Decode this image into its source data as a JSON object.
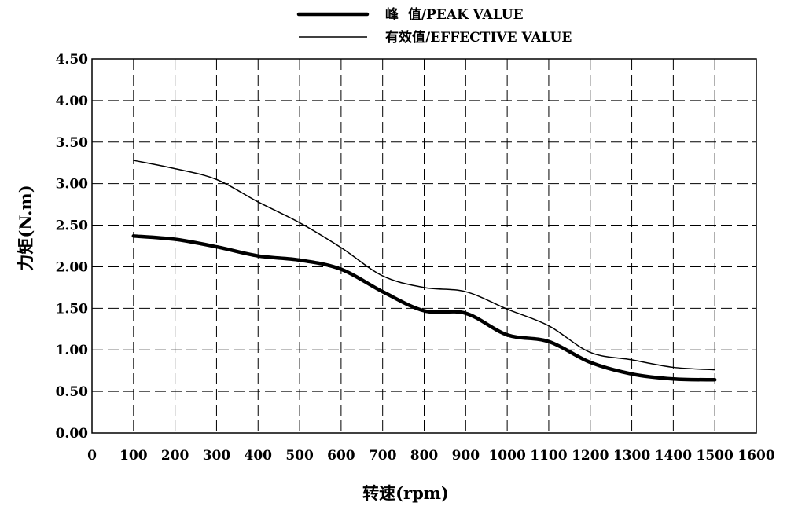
{
  "chart_data": {
    "type": "line",
    "xlabel": "转速(rpm)",
    "ylabel": "力矩(N.m)",
    "xlim": [
      0,
      1600
    ],
    "ylim": [
      0,
      4.5
    ],
    "x_ticks": [
      "0",
      "100",
      "200",
      "300",
      "400",
      "500",
      "600",
      "700",
      "800",
      "900",
      "1000",
      "1100",
      "1200",
      "1300",
      "1400",
      "1500",
      "1600"
    ],
    "y_ticks": [
      "0.00",
      "0.50",
      "1.00",
      "1.50",
      "2.00",
      "2.50",
      "3.00",
      "3.50",
      "4.00",
      "4.50"
    ],
    "grid": true,
    "legend_position": "top-center",
    "series": [
      {
        "name": "峰  值/PEAK VALUE",
        "style": "thick",
        "color": "#000000",
        "x": [
          100,
          200,
          300,
          400,
          500,
          600,
          700,
          800,
          900,
          1000,
          1100,
          1200,
          1300,
          1400,
          1500
        ],
        "y": [
          2.37,
          2.33,
          2.24,
          2.13,
          2.08,
          1.97,
          1.7,
          1.47,
          1.44,
          1.18,
          1.1,
          0.85,
          0.71,
          0.65,
          0.64
        ]
      },
      {
        "name": "有效值/EFFECTIVE VALUE",
        "style": "thin",
        "color": "#000000",
        "x": [
          100,
          200,
          300,
          400,
          500,
          600,
          700,
          800,
          900,
          1000,
          1100,
          1200,
          1300,
          1400,
          1500
        ],
        "y": [
          3.28,
          3.18,
          3.05,
          2.78,
          2.53,
          2.23,
          1.89,
          1.75,
          1.7,
          1.49,
          1.29,
          0.97,
          0.88,
          0.79,
          0.76
        ]
      }
    ]
  }
}
